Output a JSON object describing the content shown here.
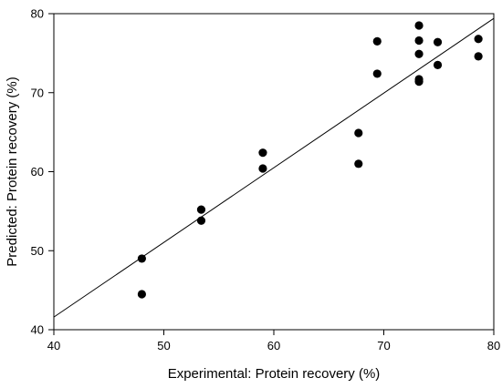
{
  "chart_data": {
    "type": "scatter",
    "title": "",
    "xlabel": "Experimental: Protein recovery (%)",
    "ylabel": "Predicted: Protein recovery (%)",
    "xlim": [
      40,
      80
    ],
    "ylim": [
      40,
      80
    ],
    "xticks": [
      "40",
      "50",
      "60",
      "70",
      "80"
    ],
    "yticks": [
      "40",
      "50",
      "60",
      "70",
      "80"
    ],
    "grid": false,
    "legend": "none",
    "marker_color": "#000000",
    "points": [
      {
        "x": 48.0,
        "y": 49.0
      },
      {
        "x": 48.0,
        "y": 44.5
      },
      {
        "x": 53.4,
        "y": 55.2
      },
      {
        "x": 53.4,
        "y": 53.8
      },
      {
        "x": 59.0,
        "y": 62.4
      },
      {
        "x": 59.0,
        "y": 60.4
      },
      {
        "x": 67.7,
        "y": 64.9
      },
      {
        "x": 67.7,
        "y": 61.0
      },
      {
        "x": 69.4,
        "y": 76.5
      },
      {
        "x": 69.4,
        "y": 72.4
      },
      {
        "x": 73.2,
        "y": 78.5
      },
      {
        "x": 73.2,
        "y": 76.6
      },
      {
        "x": 73.2,
        "y": 74.9
      },
      {
        "x": 73.2,
        "y": 71.7
      },
      {
        "x": 73.2,
        "y": 71.4
      },
      {
        "x": 74.9,
        "y": 76.4
      },
      {
        "x": 74.9,
        "y": 73.5
      },
      {
        "x": 78.6,
        "y": 76.8
      },
      {
        "x": 78.6,
        "y": 74.6
      }
    ],
    "fit_line": {
      "x": [
        40,
        80
      ],
      "y": [
        41.6,
        79.4
      ]
    }
  }
}
